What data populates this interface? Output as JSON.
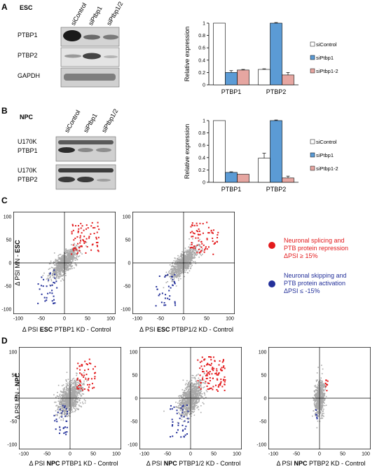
{
  "panelA": {
    "letter": "A",
    "cell": "ESC",
    "lanes": [
      "siControl",
      "siPtbp1",
      "siPtbp1/2"
    ],
    "blot_labels": [
      "PTBP1",
      "PTBP2",
      "GAPDH"
    ],
    "chart_data": {
      "type": "bar",
      "categories": [
        "PTBP1",
        "PTBP2"
      ],
      "series": [
        {
          "name": "siControl",
          "values": [
            1.0,
            0.25
          ],
          "errors": [
            0.0,
            0.01
          ]
        },
        {
          "name": "siPtbp1",
          "values": [
            0.2,
            1.0
          ],
          "errors": [
            0.03,
            0.01
          ]
        },
        {
          "name": "siPtbp1-2",
          "values": [
            0.24,
            0.16
          ],
          "errors": [
            0.01,
            0.04
          ]
        }
      ],
      "ylabel": "Relative expression",
      "ylim": [
        0,
        1
      ],
      "yticks": [
        "0",
        "0.2",
        "0.4",
        "0.6",
        "0.8",
        "1"
      ],
      "colors": [
        "#ffffff",
        "#5b9bd5",
        "#e6a6a1"
      ]
    }
  },
  "panelB": {
    "letter": "B",
    "cell": "NPC",
    "lanes": [
      "siControl",
      "siPtbp1",
      "siPtbp1/2"
    ],
    "blot_labels": [
      [
        "U170K",
        "PTBP1"
      ],
      [
        "U170K",
        "PTBP2"
      ]
    ],
    "chart_data": {
      "type": "bar",
      "categories": [
        "PTBP1",
        "PTBP2"
      ],
      "series": [
        {
          "name": "siControl",
          "values": [
            1.0,
            0.39
          ],
          "errors": [
            0.0,
            0.08
          ]
        },
        {
          "name": "siPtbp1",
          "values": [
            0.16,
            1.0
          ],
          "errors": [
            0.01,
            0.01
          ]
        },
        {
          "name": "siPtbp1-2",
          "values": [
            0.13,
            0.07
          ],
          "errors": [
            0.0,
            0.03
          ]
        }
      ],
      "ylabel": "Relative expression",
      "ylim": [
        0,
        1
      ],
      "yticks": [
        "0",
        "0.2",
        "0.4",
        "0.6",
        "0.8",
        "1"
      ],
      "colors": [
        "#ffffff",
        "#5b9bd5",
        "#e6a6a1"
      ]
    }
  },
  "panelC": {
    "letter": "C",
    "ylabel_pre": "Δ PSI MN - ",
    "ylabel_bold": "ESC",
    "plots": [
      {
        "xlabel_pre": "Δ PSI ",
        "xlabel_bold": "ESC",
        "xlabel_post": " PTBP1 KD - Control"
      },
      {
        "xlabel_pre": "Δ PSI ",
        "xlabel_bold": "ESC",
        "xlabel_post": " PTBP1/2 KD - Control"
      }
    ],
    "ticks": [
      "-100",
      "-50",
      "0",
      "50",
      "100"
    ],
    "legend": [
      {
        "color": "#e31a1c",
        "lines": [
          "Neuronal splicing and",
          "PTB protein repression",
          "ΔPSI ≥ 15%"
        ]
      },
      {
        "color": "#23309a",
        "lines": [
          "Neuronal skipping and",
          "PTB protein activation",
          "ΔPSI ≤ -15%"
        ]
      }
    ]
  },
  "panelD": {
    "letter": "D",
    "ylabel_pre": "Δ PSI MN - ",
    "ylabel_bold": "NPC",
    "plots": [
      {
        "xlabel_pre": "Δ PSI ",
        "xlabel_bold": "NPC",
        "xlabel_post": " PTBP1 KD - Control"
      },
      {
        "xlabel_pre": "Δ PSI ",
        "xlabel_bold": "NPC",
        "xlabel_post": " PTBP1/2 KD - Control"
      },
      {
        "xlabel_pre": "Δ PSI ",
        "xlabel_bold": "NPC",
        "xlabel_post": " PTBP2 KD - Control"
      }
    ],
    "ticks": [
      "-100",
      "-50",
      "0",
      "50",
      "100"
    ]
  },
  "colors": {
    "gray": "#a9a9a9",
    "red": "#e31a1c",
    "blue": "#23309a"
  }
}
